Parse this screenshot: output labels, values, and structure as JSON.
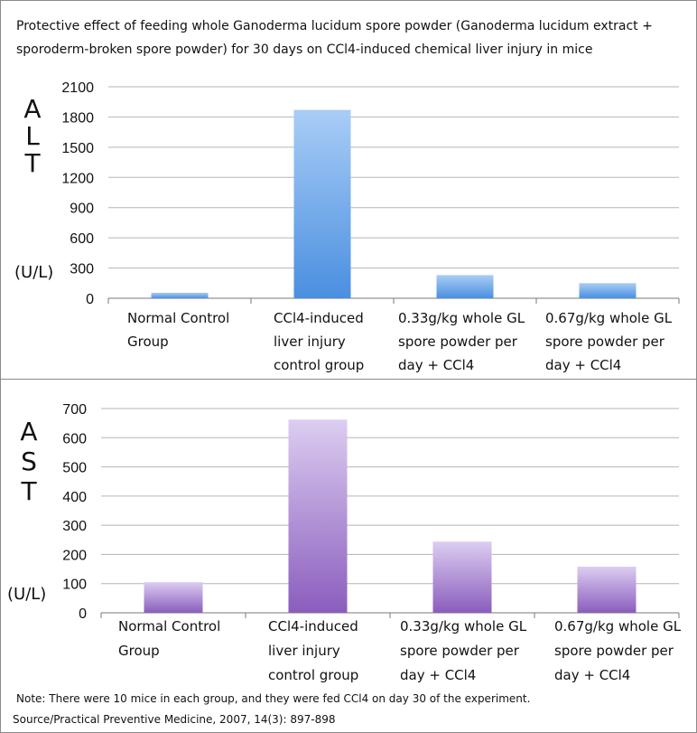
{
  "title": "Protective effect of feeding whole Ganoderma lucidum spore powder (Ganoderma lucidum extract + sporoderm-broken spore powder) for 30 days on CCl4-induced chemical liver injury in mice",
  "note": "Note: There were 10 mice in each group, and they were fed CCl4 on day 30 of the experiment.",
  "source": "Source/Practical Preventive Medicine, 2007, 14(3): 897-898",
  "colors": {
    "alt_top": "#a9cdf6",
    "alt_bottom": "#4a8fe0",
    "ast_top": "#dccdf1",
    "ast_bottom": "#8a5dbd",
    "grid": "#b5b5b5",
    "axis": "#7a7a7a"
  },
  "chart_data": [
    {
      "type": "bar",
      "id": "alt",
      "title": "",
      "ylabel_letters": [
        "A",
        "L",
        "T"
      ],
      "unit": "(U/L)",
      "xlabel": "",
      "categories": [
        [
          "Normal Control",
          "Group"
        ],
        [
          "CCl4-induced",
          "liver injury",
          "control group"
        ],
        [
          "0.33g/kg whole GL",
          "spore powder per",
          "day + CCl4"
        ],
        [
          "0.67g/kg whole GL",
          "spore powder per",
          "day + CCl4"
        ]
      ],
      "values": [
        55,
        1870,
        230,
        150
      ],
      "ylim": [
        0,
        2100
      ],
      "yticks": [
        0,
        300,
        600,
        900,
        1200,
        1500,
        1800,
        2100
      ],
      "grid": true
    },
    {
      "type": "bar",
      "id": "ast",
      "title": "",
      "ylabel_letters": [
        "A",
        "S",
        "T"
      ],
      "unit": "(U/L)",
      "xlabel": "",
      "categories": [
        [
          "Normal Control",
          "Group"
        ],
        [
          "CCl4-induced",
          "liver injury",
          "control group"
        ],
        [
          "0.33g/kg whole GL",
          "spore powder per",
          "day + CCl4"
        ],
        [
          "0.67g/kg whole GL",
          "spore powder per",
          "day + CCl4"
        ]
      ],
      "values": [
        105,
        662,
        244,
        158
      ],
      "ylim": [
        0,
        700
      ],
      "yticks": [
        0,
        100,
        200,
        300,
        400,
        500,
        600,
        700
      ],
      "grid": true
    }
  ]
}
